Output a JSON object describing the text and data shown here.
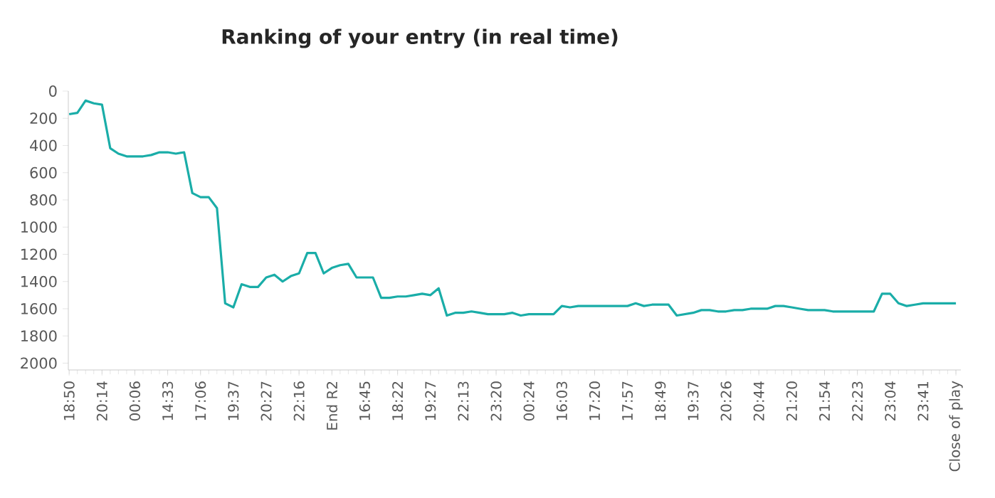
{
  "chart_data": {
    "type": "line",
    "title": "Ranking of your entry (in real time)",
    "categories": [
      "18:50",
      null,
      null,
      null,
      "20:14",
      null,
      null,
      null,
      "00:06",
      null,
      null,
      null,
      "14:33",
      null,
      null,
      null,
      "17:06",
      null,
      null,
      null,
      "19:37",
      null,
      null,
      null,
      "20:27",
      null,
      null,
      null,
      "22:16",
      null,
      null,
      null,
      "End R2",
      null,
      null,
      null,
      "16:45",
      null,
      null,
      null,
      "18:22",
      null,
      null,
      null,
      "19:27",
      null,
      null,
      null,
      "22:13",
      null,
      null,
      null,
      "23:20",
      null,
      null,
      null,
      "00:24",
      null,
      null,
      null,
      "16:03",
      null,
      null,
      null,
      "17:20",
      null,
      null,
      null,
      "17:57",
      null,
      null,
      null,
      "18:49",
      null,
      null,
      null,
      "19:37",
      null,
      null,
      null,
      "20:26",
      null,
      null,
      null,
      "20:44",
      null,
      null,
      null,
      "21:20",
      null,
      null,
      null,
      "21:54",
      null,
      null,
      null,
      "22:23",
      null,
      null,
      null,
      "23:04",
      null,
      null,
      null,
      "23:41",
      null,
      null,
      null,
      "Close of play"
    ],
    "values": [
      170,
      160,
      70,
      90,
      100,
      420,
      460,
      480,
      480,
      480,
      470,
      450,
      450,
      460,
      450,
      750,
      780,
      780,
      860,
      1560,
      1590,
      1420,
      1440,
      1440,
      1370,
      1350,
      1400,
      1360,
      1340,
      1190,
      1190,
      1340,
      1300,
      1280,
      1270,
      1370,
      1370,
      1370,
      1520,
      1520,
      1510,
      1510,
      1500,
      1490,
      1500,
      1450,
      1650,
      1630,
      1630,
      1620,
      1630,
      1640,
      1640,
      1640,
      1630,
      1650,
      1640,
      1640,
      1640,
      1640,
      1580,
      1590,
      1580,
      1580,
      1580,
      1580,
      1580,
      1580,
      1580,
      1560,
      1580,
      1570,
      1570,
      1570,
      1650,
      1640,
      1630,
      1610,
      1610,
      1620,
      1620,
      1610,
      1610,
      1600,
      1600,
      1600,
      1580,
      1580,
      1590,
      1600,
      1610,
      1610,
      1610,
      1620,
      1620,
      1620,
      1620,
      1620,
      1620,
      1490,
      1490,
      1560,
      1580,
      1570,
      1560,
      1560,
      1560,
      1560,
      1560
    ],
    "color": "#1aada8",
    "ylim": [
      2050,
      0
    ],
    "yticks": [
      0,
      200,
      400,
      600,
      800,
      1000,
      1200,
      1400,
      1600,
      1800,
      2000
    ]
  }
}
